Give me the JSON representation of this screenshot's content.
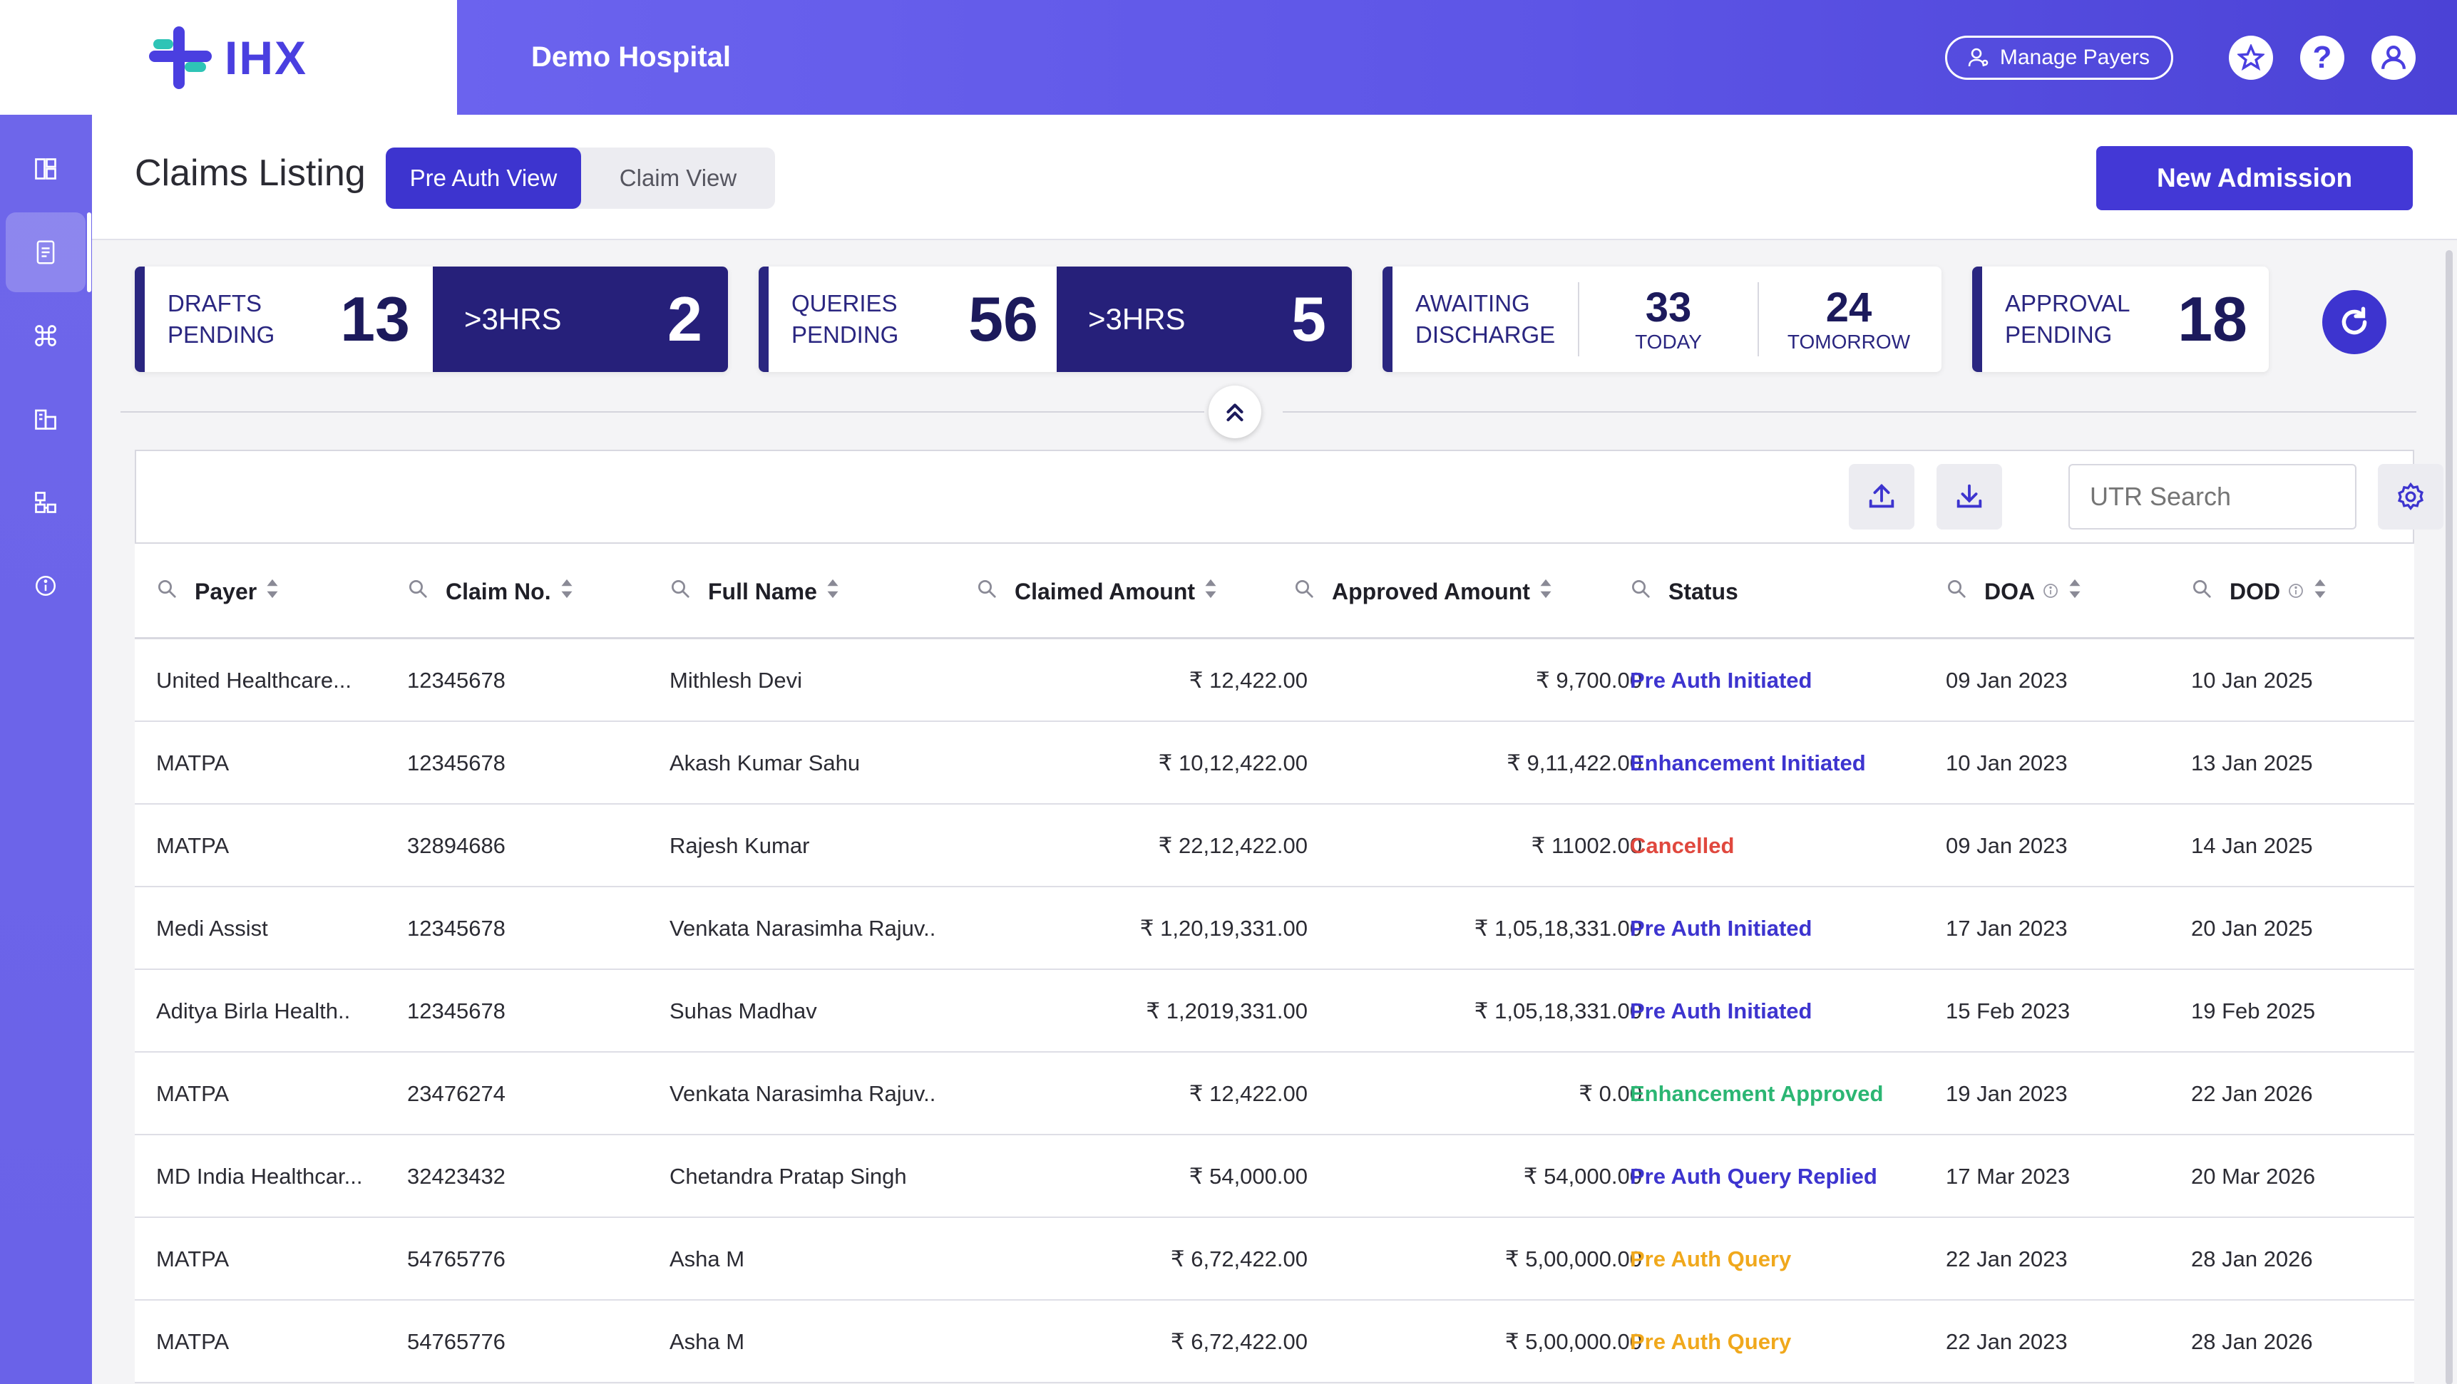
{
  "header": {
    "logo": "IHX",
    "hospital": "Demo Hospital",
    "manage_payers": "Manage Payers",
    "help_glyph": "?",
    "colors": {
      "brand": "#4338d6",
      "header_gradient_start": "#6b63ee",
      "header_gradient_end": "#4b42d6"
    }
  },
  "sidebar": {
    "items": [
      {
        "icon": "dashboard-icon"
      },
      {
        "icon": "document-icon",
        "active": true
      },
      {
        "icon": "command-icon"
      },
      {
        "icon": "building-icon"
      },
      {
        "icon": "hierarchy-icon"
      },
      {
        "icon": "info-icon"
      }
    ]
  },
  "page": {
    "title": "Claims Listing",
    "view_pre_auth": "Pre Auth View",
    "view_claim": "Claim View",
    "new_admission": "New Admission"
  },
  "stats": {
    "drafts": {
      "label1": "DRAFTS",
      "label2": "PENDING",
      "count": "13",
      "hrs_label": ">3HRS",
      "hrs_count": "2"
    },
    "queries": {
      "label1": "QUERIES",
      "label2": "PENDING",
      "count": "56",
      "hrs_label": ">3HRS",
      "hrs_count": "5"
    },
    "awaiting": {
      "label1": "AWAITING",
      "label2": "DISCHARGE",
      "today_count": "33",
      "today_label": "TODAY",
      "tomorrow_count": "24",
      "tomorrow_label": "TOMORROW"
    },
    "approval": {
      "label1": "APPROVAL",
      "label2": "PENDING",
      "count": "18"
    }
  },
  "toolbar": {
    "utr_placeholder": "UTR Search"
  },
  "table": {
    "columns": [
      "Payer",
      "Claim No.",
      "Full Name",
      "Claimed Amount",
      "Approved Amount",
      "Status",
      "DOA",
      "DOD"
    ],
    "status_colors": {
      "blue": "#3d34cf",
      "red": "#e0483e",
      "green": "#2bb673",
      "amber": "#f0a81c"
    },
    "rows": [
      {
        "payer": "United Healthcare...",
        "claim_no": "12345678",
        "name": "Mithlesh Devi",
        "claimed": "₹ 12,422.00",
        "approved": "₹ 9,700.00",
        "status": "Pre Auth Initiated",
        "status_color": "#3d34cf",
        "doa": "09 Jan 2023",
        "dod": "10 Jan 2025"
      },
      {
        "payer": "MATPA",
        "claim_no": "12345678",
        "name": "Akash Kumar Sahu",
        "claimed": "₹ 10,12,422.00",
        "approved": "₹ 9,11,422.00",
        "status": "Enhancement Initiated",
        "status_color": "#3d34cf",
        "doa": "10 Jan 2023",
        "dod": "13 Jan 2025"
      },
      {
        "payer": "MATPA",
        "claim_no": "32894686",
        "name": "Rajesh Kumar",
        "claimed": "₹ 22,12,422.00",
        "approved": "₹ 11002.00",
        "status": "Cancelled",
        "status_color": "#e0483e",
        "doa": "09 Jan 2023",
        "dod": "14 Jan 2025"
      },
      {
        "payer": "Medi Assist",
        "claim_no": "12345678",
        "name": "Venkata Narasimha Rajuv..",
        "claimed": "₹ 1,20,19,331.00",
        "approved": "₹ 1,05,18,331.00",
        "status": "Pre Auth Initiated",
        "status_color": "#3d34cf",
        "doa": "17 Jan 2023",
        "dod": "20 Jan 2025"
      },
      {
        "payer": "Aditya Birla Health..",
        "claim_no": "12345678",
        "name": "Suhas Madhav",
        "claimed": "₹ 1,2019,331.00",
        "approved": "₹ 1,05,18,331.00",
        "status": "Pre Auth Initiated",
        "status_color": "#3d34cf",
        "doa": "15 Feb 2023",
        "dod": "19 Feb 2025"
      },
      {
        "payer": "MATPA",
        "claim_no": "23476274",
        "name": "Venkata Narasimha Rajuv..",
        "claimed": "₹ 12,422.00",
        "approved": "₹ 0.00",
        "status": "Enhancement Approved",
        "status_color": "#2bb673",
        "doa": "19 Jan 2023",
        "dod": "22 Jan 2026"
      },
      {
        "payer": "MD India Healthcar...",
        "claim_no": "32423432",
        "name": "Chetandra Pratap Singh",
        "claimed": "₹ 54,000.00",
        "approved": "₹ 54,000.00",
        "status": "Pre Auth Query Replied",
        "status_color": "#3d34cf",
        "doa": "17 Mar 2023",
        "dod": "20 Mar 2026"
      },
      {
        "payer": "MATPA",
        "claim_no": "54765776",
        "name": "Asha M",
        "claimed": "₹ 6,72,422.00",
        "approved": "₹ 5,00,000.00",
        "status": "Pre Auth Query",
        "status_color": "#f0a81c",
        "doa": "22 Jan 2023",
        "dod": "28 Jan 2026"
      },
      {
        "payer": "MATPA",
        "claim_no": "54765776",
        "name": "Asha M",
        "claimed": "₹ 6,72,422.00",
        "approved": "₹ 5,00,000.00",
        "status": "Pre Auth Query",
        "status_color": "#f0a81c",
        "doa": "22 Jan 2023",
        "dod": "28 Jan 2026"
      }
    ]
  }
}
